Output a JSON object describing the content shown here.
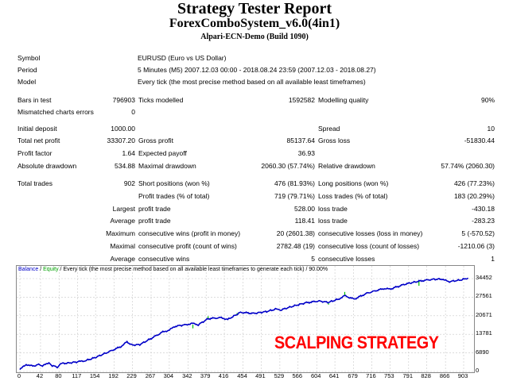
{
  "header": {
    "title": "Strategy Tester Report",
    "expert": "ForexComboSystem_v6.0(4in1)",
    "server": "Alpari-ECN-Demo (Build 1090)"
  },
  "info": [
    {
      "label": "Symbol",
      "value": "EURUSD (Euro vs US Dollar)"
    },
    {
      "label": "Period",
      "value": "5 Minutes (M5) 2007.12.03 00:00 - 2018.08.24 23:59 (2007.12.03 - 2018.08.27)"
    },
    {
      "label": "Model",
      "value": "Every tick (the most precise method based on all available least timeframes)"
    }
  ],
  "stats": [
    [
      "Bars in test",
      "796903",
      "Ticks modelled",
      "1592582",
      "Modelling quality",
      "90%"
    ],
    [
      "Mismatched charts errors",
      "0",
      "",
      "",
      "",
      ""
    ],
    [
      "Initial deposit",
      "1000.00",
      "",
      "",
      "Spread",
      "10"
    ],
    [
      "Total net profit",
      "33307.20",
      "Gross profit",
      "85137.64",
      "Gross loss",
      "-51830.44"
    ],
    [
      "Profit factor",
      "1.64",
      "Expected payoff",
      "36.93",
      "",
      ""
    ],
    [
      "Absolute drawdown",
      "534.88",
      "Maximal drawdown",
      "2060.30 (57.74%)",
      "Relative drawdown",
      "57.74% (2060.30)"
    ]
  ],
  "trades": [
    [
      "Total trades",
      "902",
      "Short positions (won %)",
      "476 (81.93%)",
      "Long positions (won %)",
      "426 (77.23%)"
    ],
    [
      "",
      "",
      "Profit trades (% of total)",
      "719 (79.71%)",
      "Loss trades (% of total)",
      "183 (20.29%)"
    ],
    [
      "Largest",
      "",
      "profit trade",
      "528.00",
      "loss trade",
      "-430.18"
    ],
    [
      "Average",
      "",
      "profit trade",
      "118.41",
      "loss trade",
      "-283.23"
    ],
    [
      "Maximum",
      "",
      "consecutive wins (profit in money)",
      "20 (2601.38)",
      "consecutive losses (loss in money)",
      "5 (-570.52)"
    ],
    [
      "Maximal",
      "",
      "consecutive profit (count of wins)",
      "2782.48 (19)",
      "consecutive loss (count of losses)",
      "-1210.06 (3)"
    ],
    [
      "Average",
      "",
      "consecutive wins",
      "5",
      "consecutive losses",
      "1"
    ]
  ],
  "chart_data": {
    "type": "line",
    "caption": {
      "balance": "Balance",
      "sep1": " / ",
      "equity": "Equity",
      "rest": " / Every tick (the most precise method based on all available least timeframes to generate each tick) / 90.00%"
    },
    "x_ticks": [
      "0",
      "42",
      "80",
      "117",
      "154",
      "192",
      "229",
      "267",
      "304",
      "342",
      "379",
      "416",
      "454",
      "491",
      "529",
      "566",
      "604",
      "641",
      "679",
      "716",
      "753",
      "791",
      "828",
      "866",
      "903"
    ],
    "y_ticks": [
      "0",
      "6890",
      "13781",
      "20671",
      "27561",
      "34452"
    ],
    "xlim": [
      0,
      912
    ],
    "ylim": [
      0,
      34452
    ],
    "grid": true,
    "colors": {
      "balance": "#0000c8",
      "equity": "#00c000"
    },
    "series": [
      {
        "name": "Balance",
        "points": [
          [
            0,
            686
          ],
          [
            13,
            2640
          ],
          [
            26,
            1960
          ],
          [
            40,
            2640
          ],
          [
            46,
            1960
          ],
          [
            59,
            3330
          ],
          [
            66,
            2150
          ],
          [
            76,
            1660
          ],
          [
            83,
            2940
          ],
          [
            99,
            3130
          ],
          [
            119,
            3620
          ],
          [
            132,
            3920
          ],
          [
            152,
            5090
          ],
          [
            178,
            7050
          ],
          [
            205,
            9200
          ],
          [
            218,
            10960
          ],
          [
            228,
            9790
          ],
          [
            244,
            9980
          ],
          [
            264,
            11950
          ],
          [
            291,
            14680
          ],
          [
            304,
            15370
          ],
          [
            317,
            16840
          ],
          [
            337,
            17330
          ],
          [
            350,
            17820
          ],
          [
            363,
            17330
          ],
          [
            383,
            19580
          ],
          [
            410,
            19970
          ],
          [
            423,
            19290
          ],
          [
            449,
            21930
          ],
          [
            476,
            21540
          ],
          [
            502,
            22230
          ],
          [
            522,
            23200
          ],
          [
            529,
            22710
          ],
          [
            555,
            24180
          ],
          [
            581,
            25450
          ],
          [
            608,
            26140
          ],
          [
            628,
            25650
          ],
          [
            648,
            26830
          ],
          [
            661,
            28100
          ],
          [
            680,
            26830
          ],
          [
            707,
            29080
          ],
          [
            740,
            30750
          ],
          [
            753,
            30550
          ],
          [
            786,
            32510
          ],
          [
            812,
            33490
          ],
          [
            839,
            34180
          ],
          [
            859,
            34270
          ],
          [
            872,
            33290
          ],
          [
            898,
            33980
          ],
          [
            912,
            34660
          ]
        ]
      }
    ],
    "equity_dips": [
      [
        352,
        17330,
        16000
      ],
      [
        383,
        19580,
        20500
      ],
      [
        442,
        20900,
        21700
      ],
      [
        628,
        25650,
        24800
      ],
      [
        661,
        28100,
        29500
      ],
      [
        812,
        33490,
        31800
      ]
    ]
  },
  "watermark": "SCALPING STRATEGY"
}
